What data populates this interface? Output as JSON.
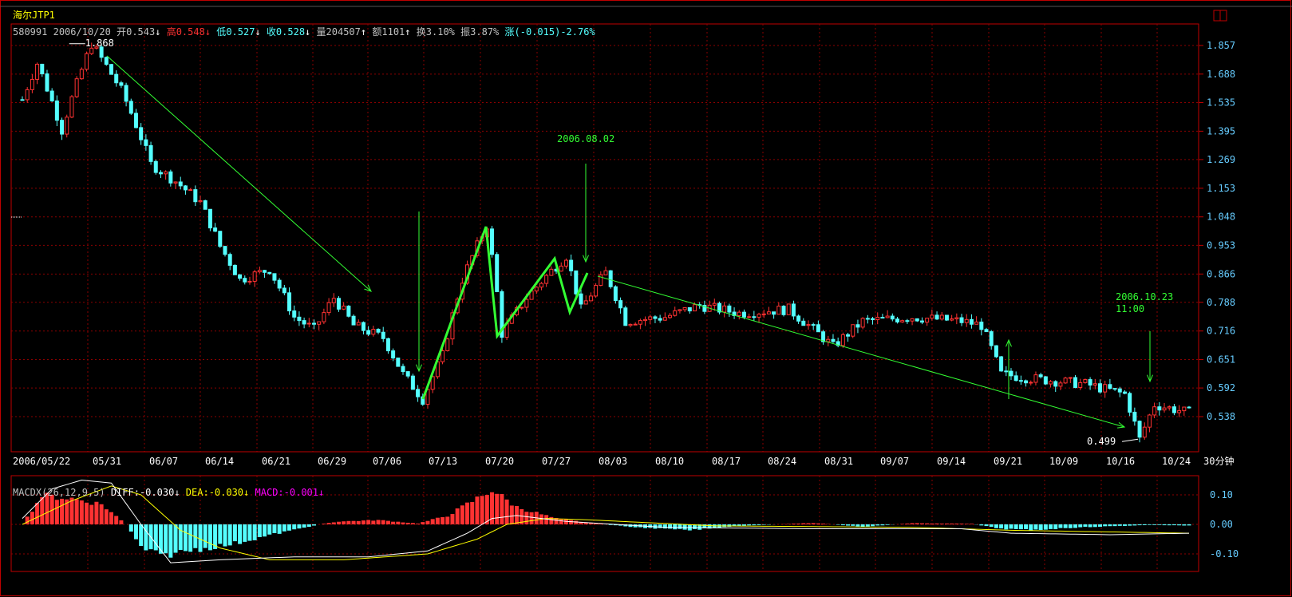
{
  "header": {
    "title": "海尔JTP1",
    "code": "580991",
    "date": "2006/10/20",
    "open_label": "开",
    "open": "0.543",
    "high_label": "高",
    "high": "0.548",
    "low_label": "低",
    "low": "0.527",
    "close_label": "收",
    "close": "0.528",
    "vol_label": "量",
    "vol": "204507",
    "amount_label": "额",
    "amount": "1101",
    "turnover_label": "换",
    "turnover": "3.10%",
    "amplitude_label": "振",
    "amplitude": "3.87%",
    "change_label": "涨",
    "change": "(-0.015)-2.76%"
  },
  "macd": {
    "name": "MACDX(26,12,9,5)",
    "diff_label": "DIFF:",
    "diff": "-0.030",
    "dea_label": "DEA:",
    "dea": "-0.030",
    "macd_label": "MACD:",
    "macd": "-0.001"
  },
  "period_label": "30分钟",
  "colors": {
    "up": "#ff3232",
    "down": "#54ffff",
    "grid": "#8b0000",
    "axis": "#c00000",
    "annotation": "#33ff33",
    "dea": "#ffff00",
    "diff": "#ffffff",
    "macd_text": "#ff00ff"
  },
  "chart_data": [
    {
      "type": "candlestick",
      "scale": "log",
      "y_ticks": [
        1.857,
        1.688,
        1.535,
        1.395,
        1.269,
        1.153,
        1.048,
        0.953,
        0.866,
        0.788,
        0.716,
        0.651,
        0.592,
        0.538
      ],
      "x_ticks": [
        "2006/05/22",
        "05/31",
        "06/07",
        "06/14",
        "06/21",
        "06/29",
        "07/06",
        "07/13",
        "07/20",
        "07/27",
        "08/03",
        "08/10",
        "08/17",
        "08/24",
        "08/31",
        "09/07",
        "09/14",
        "09/21",
        "10/09",
        "10/16",
        "10/24"
      ],
      "price_path": [
        [
          0,
          1.55
        ],
        [
          3,
          1.75
        ],
        [
          8,
          1.4
        ],
        [
          14,
          1.868
        ],
        [
          20,
          1.6
        ],
        [
          26,
          1.25
        ],
        [
          31,
          1.18
        ],
        [
          36,
          1.1
        ],
        [
          40,
          0.95
        ],
        [
          44,
          0.85
        ],
        [
          50,
          0.88
        ],
        [
          55,
          0.75
        ],
        [
          59,
          0.72
        ],
        [
          63,
          0.8
        ],
        [
          67,
          0.73
        ],
        [
          73,
          0.7
        ],
        [
          77,
          0.62
        ],
        [
          81,
          0.57
        ],
        [
          85,
          0.66
        ],
        [
          89,
          0.85
        ],
        [
          94,
          1.02
        ],
        [
          97,
          0.71
        ],
        [
          102,
          0.8
        ],
        [
          110,
          0.92
        ],
        [
          113,
          0.77
        ],
        [
          118,
          0.87
        ],
        [
          122,
          0.74
        ],
        [
          130,
          0.75
        ],
        [
          137,
          0.78
        ],
        [
          145,
          0.76
        ],
        [
          155,
          0.77
        ],
        [
          164,
          0.68
        ],
        [
          170,
          0.74
        ],
        [
          180,
          0.75
        ],
        [
          190,
          0.74
        ],
        [
          194,
          0.73
        ],
        [
          198,
          0.62
        ],
        [
          205,
          0.61
        ],
        [
          215,
          0.6
        ],
        [
          223,
          0.58
        ],
        [
          226,
          0.499
        ],
        [
          229,
          0.56
        ],
        [
          236,
          0.545
        ]
      ],
      "extremes": {
        "high": "1.868",
        "low": "0.499"
      },
      "annotations": [
        {
          "text": "2006.08.02"
        },
        {
          "text": "2006.10.23"
        },
        {
          "text": "11:00"
        }
      ]
    },
    {
      "type": "bar",
      "name": "MACD",
      "y_ticks": [
        "0.10",
        "0.00",
        "-0.10"
      ],
      "macd_path": [
        [
          0,
          0
        ],
        [
          4,
          0.1
        ],
        [
          10,
          0.09
        ],
        [
          16,
          0.07
        ],
        [
          21,
          0
        ],
        [
          24,
          -0.08
        ],
        [
          28,
          -0.11
        ],
        [
          34,
          -0.09
        ],
        [
          42,
          -0.07
        ],
        [
          52,
          -0.03
        ],
        [
          60,
          0
        ],
        [
          64,
          0.01
        ],
        [
          72,
          0.015
        ],
        [
          80,
          0.003
        ],
        [
          86,
          0.03
        ],
        [
          95,
          0.12
        ],
        [
          100,
          0.06
        ],
        [
          108,
          0.02
        ],
        [
          116,
          0.003
        ],
        [
          124,
          -0.01
        ],
        [
          135,
          -0.02
        ],
        [
          145,
          -0.005
        ],
        [
          160,
          0.005
        ],
        [
          170,
          -0.008
        ],
        [
          180,
          0.004
        ],
        [
          192,
          0.002
        ],
        [
          198,
          -0.015
        ],
        [
          204,
          -0.02
        ],
        [
          214,
          -0.01
        ],
        [
          228,
          -0.002
        ],
        [
          236,
          -0.004
        ]
      ],
      "diff_path": [
        [
          0,
          0.02
        ],
        [
          6,
          0.12
        ],
        [
          12,
          0.15
        ],
        [
          18,
          0.14
        ],
        [
          24,
          0.0
        ],
        [
          30,
          -0.13
        ],
        [
          40,
          -0.12
        ],
        [
          55,
          -0.11
        ],
        [
          70,
          -0.11
        ],
        [
          82,
          -0.09
        ],
        [
          90,
          -0.03
        ],
        [
          95,
          0.02
        ],
        [
          100,
          0.03
        ],
        [
          110,
          0.01
        ],
        [
          130,
          -0.01
        ],
        [
          160,
          -0.015
        ],
        [
          190,
          -0.015
        ],
        [
          200,
          -0.03
        ],
        [
          220,
          -0.035
        ],
        [
          236,
          -0.03
        ]
      ],
      "dea_path": [
        [
          0,
          0.0
        ],
        [
          10,
          0.08
        ],
        [
          18,
          0.13
        ],
        [
          24,
          0.1
        ],
        [
          32,
          -0.02
        ],
        [
          40,
          -0.08
        ],
        [
          50,
          -0.12
        ],
        [
          65,
          -0.12
        ],
        [
          82,
          -0.1
        ],
        [
          92,
          -0.05
        ],
        [
          98,
          0.0
        ],
        [
          106,
          0.02
        ],
        [
          115,
          0.015
        ],
        [
          140,
          -0.005
        ],
        [
          180,
          -0.01
        ],
        [
          200,
          -0.02
        ],
        [
          236,
          -0.03
        ]
      ]
    }
  ]
}
